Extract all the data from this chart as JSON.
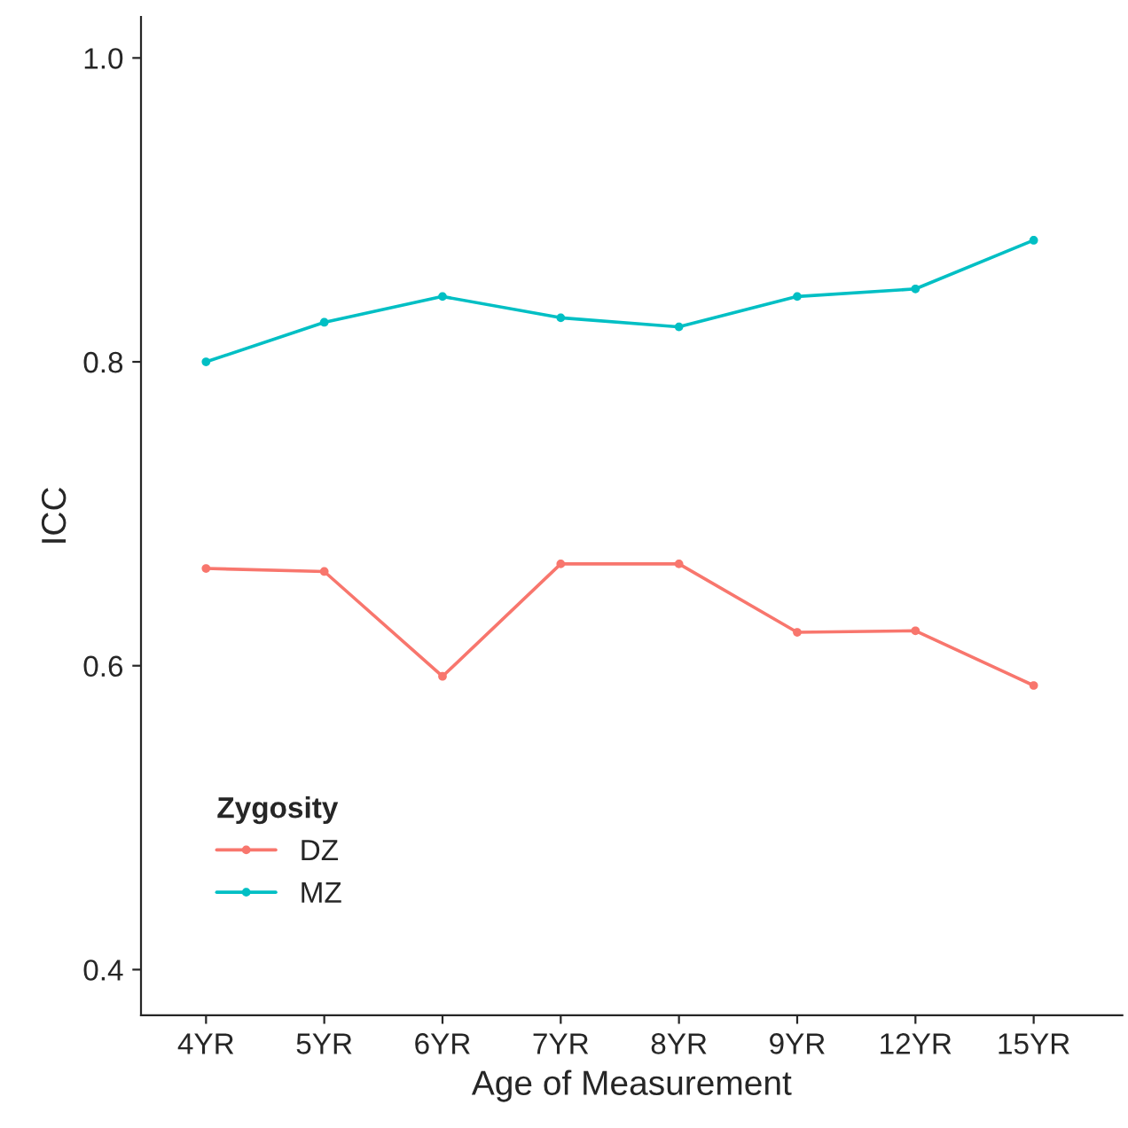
{
  "chart_data": {
    "type": "line",
    "xlabel": "Age of Measurement",
    "ylabel": "ICC",
    "legend_title": "Zygosity",
    "categories": [
      "4YR",
      "5YR",
      "6YR",
      "7YR",
      "8YR",
      "9YR",
      "12YR",
      "15YR"
    ],
    "series": [
      {
        "name": "DZ",
        "color": "#f8766d",
        "values": [
          0.664,
          0.662,
          0.593,
          0.667,
          0.667,
          0.622,
          0.623,
          0.587
        ]
      },
      {
        "name": "MZ",
        "color": "#00bfc4",
        "values": [
          0.8,
          0.826,
          0.843,
          0.829,
          0.823,
          0.843,
          0.848,
          0.88
        ]
      }
    ],
    "ylim": [
      0.37,
      1.027
    ],
    "yticks": [
      0.4,
      0.6,
      0.8,
      {
        "value": 1,
        "label": "1.0"
      }
    ],
    "grid": false,
    "legend": "bottom left",
    "marker": "circle",
    "line_style": "solid"
  }
}
